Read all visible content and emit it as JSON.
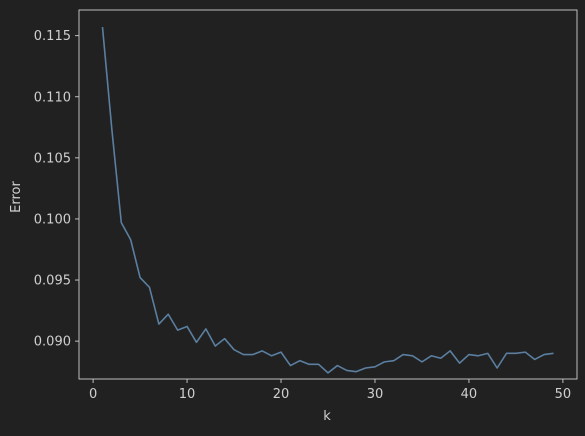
{
  "colors": {
    "background": "#212121",
    "axes": "#cfcfcf",
    "text": "#cfcfcf",
    "line": "#5b7fa0"
  },
  "chart_data": {
    "type": "line",
    "title": "",
    "xlabel": "k",
    "ylabel": "Error",
    "xlim": [
      -1.5,
      51.5
    ],
    "ylim": [
      0.0869,
      0.1171
    ],
    "xticks": [
      0,
      10,
      20,
      30,
      40,
      50
    ],
    "xtick_labels": [
      "0",
      "10",
      "20",
      "30",
      "40",
      "50"
    ],
    "yticks": [
      0.09,
      0.095,
      0.1,
      0.105,
      0.11,
      0.115
    ],
    "ytick_labels": [
      "0.090",
      "0.095",
      "0.100",
      "0.105",
      "0.110",
      "0.115"
    ],
    "grid": false,
    "series": [
      {
        "x": [
          1,
          2,
          3,
          4,
          5,
          6,
          7,
          8,
          9,
          10,
          11,
          12,
          13,
          14,
          15,
          16,
          17,
          18,
          19,
          20,
          21,
          22,
          23,
          24,
          25,
          26,
          27,
          28,
          29,
          30,
          31,
          32,
          33,
          34,
          35,
          36,
          37,
          38,
          39,
          40,
          41,
          42,
          43,
          44,
          45,
          46,
          47,
          48,
          49
        ],
        "y": [
          0.1157,
          0.1073,
          0.0997,
          0.0983,
          0.0952,
          0.0944,
          0.0914,
          0.0922,
          0.0909,
          0.0912,
          0.0899,
          0.091,
          0.0896,
          0.0902,
          0.0893,
          0.0889,
          0.0889,
          0.0892,
          0.0888,
          0.0891,
          0.088,
          0.0884,
          0.0881,
          0.0881,
          0.0874,
          0.088,
          0.0876,
          0.0875,
          0.0878,
          0.0879,
          0.0883,
          0.0884,
          0.0889,
          0.0888,
          0.0883,
          0.0888,
          0.0886,
          0.0892,
          0.0882,
          0.0889,
          0.0888,
          0.089,
          0.0878,
          0.089,
          0.089,
          0.0891,
          0.0885,
          0.0889,
          0.089
        ]
      }
    ]
  }
}
